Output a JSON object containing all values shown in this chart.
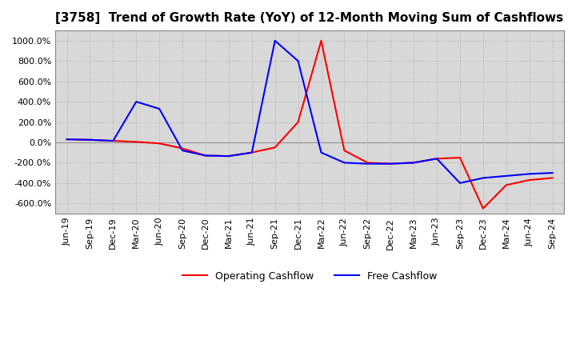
{
  "title": "[3758]  Trend of Growth Rate (YoY) of 12-Month Moving Sum of Cashflows",
  "ylim": [
    -700,
    1100
  ],
  "yticks": [
    -600,
    -400,
    -200,
    0,
    200,
    400,
    600,
    800,
    1000
  ],
  "background_color": "#ffffff",
  "plot_bg_color": "#d8d8d8",
  "grid_color": "#aaaaaa",
  "operating_color": "#ff0000",
  "free_color": "#0000ff",
  "legend_labels": [
    "Operating Cashflow",
    "Free Cashflow"
  ],
  "dates": [
    "Jun-19",
    "Sep-19",
    "Dec-19",
    "Mar-20",
    "Jun-20",
    "Sep-20",
    "Dec-20",
    "Mar-21",
    "Jun-21",
    "Sep-21",
    "Dec-21",
    "Mar-22",
    "Jun-22",
    "Sep-22",
    "Dec-22",
    "Mar-23",
    "Jun-23",
    "Sep-23",
    "Dec-23",
    "Mar-24",
    "Jun-24",
    "Sep-24"
  ],
  "operating_cashflow": [
    30,
    25,
    15,
    5,
    -10,
    -60,
    -130,
    -135,
    -100,
    -50,
    200,
    1000,
    -80,
    -200,
    -210,
    -200,
    -160,
    -150,
    -650,
    -420,
    -370,
    -350
  ],
  "free_cashflow": [
    30,
    25,
    15,
    400,
    330,
    -80,
    -130,
    -135,
    -100,
    1000,
    800,
    -100,
    -200,
    -210,
    -210,
    -200,
    -160,
    -400,
    -350,
    -330,
    -310,
    -300
  ]
}
